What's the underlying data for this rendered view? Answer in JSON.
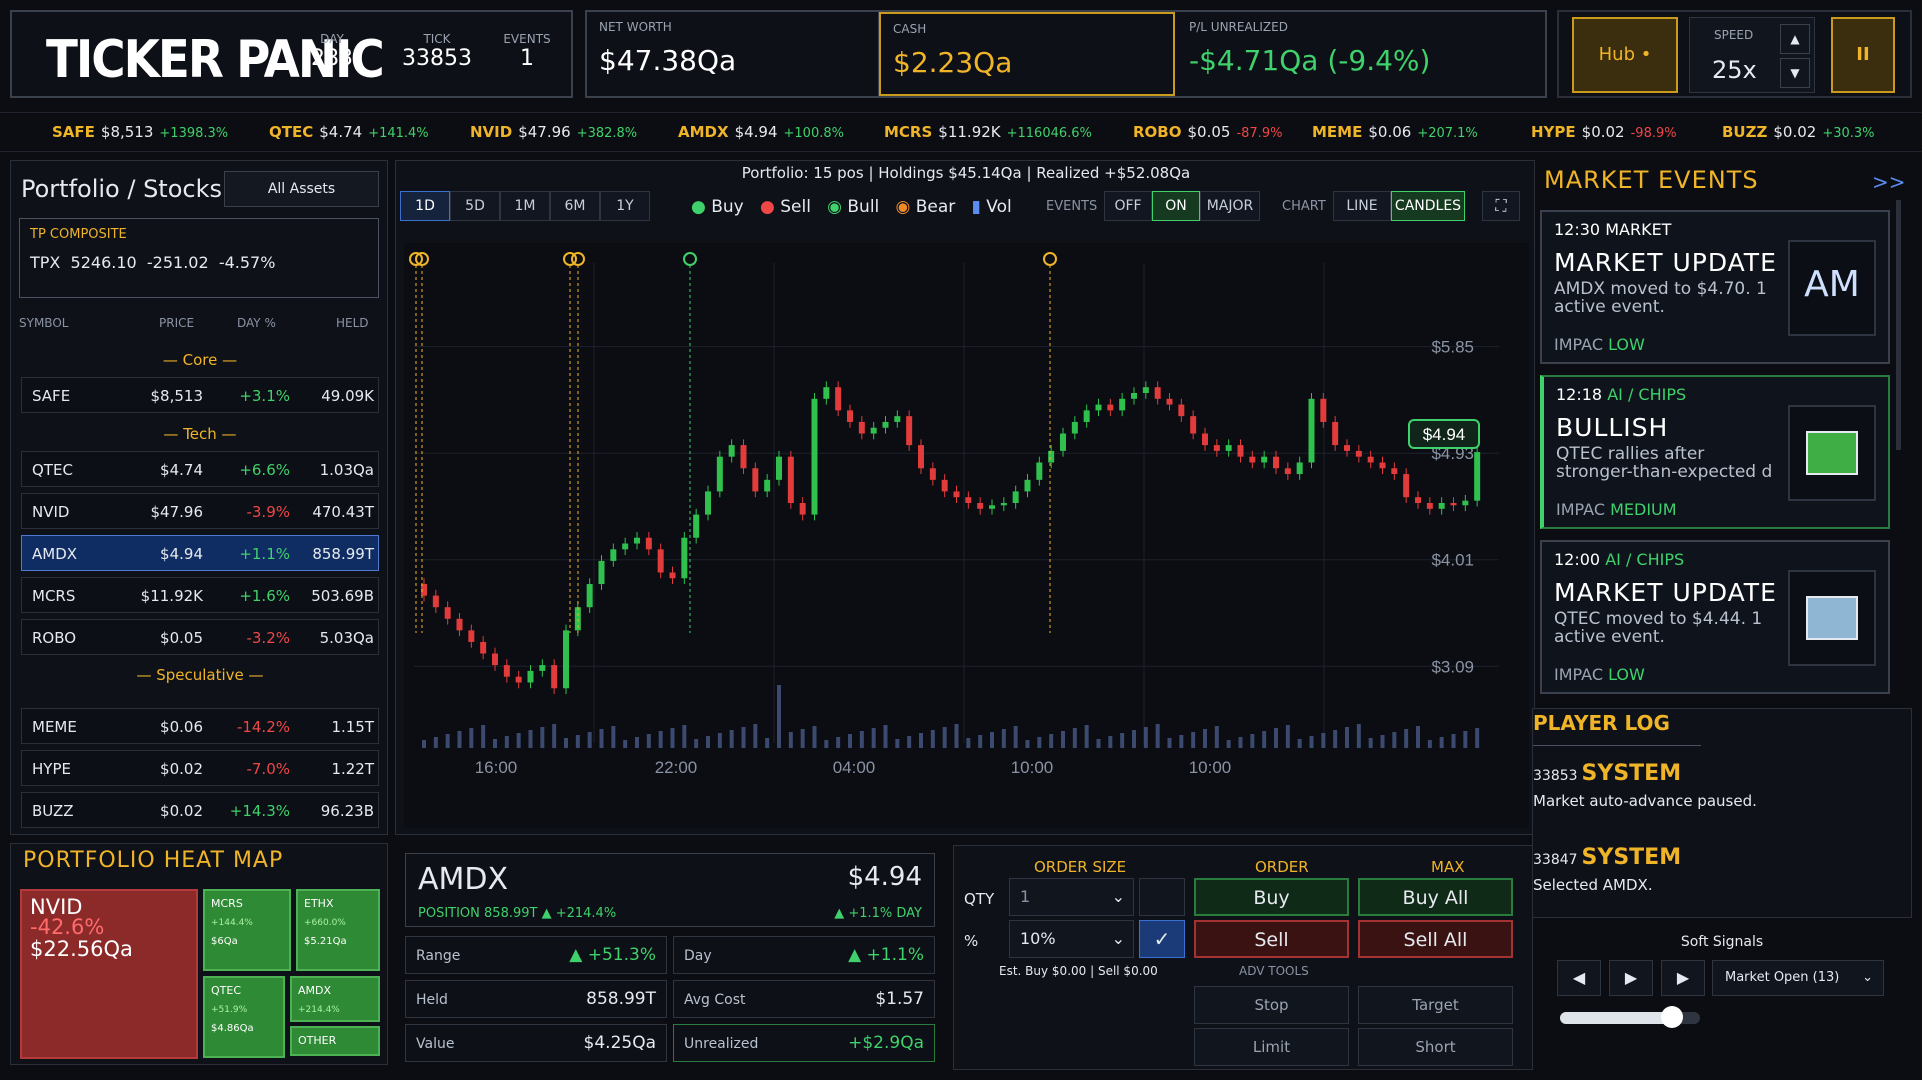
{
  "app": {
    "logo": "TICKER PANIC"
  },
  "header": {
    "day_label": "DAY",
    "day": "283",
    "tick_label": "TICK",
    "tick": "33853",
    "events_label": "EVENTS",
    "events": "1",
    "net_worth_label": "NET WORTH",
    "net_worth": "$47.38Qa",
    "cash_label": "CASH",
    "cash": "$2.23Qa",
    "pl_label": "P/L UNREALIZED",
    "pl": "-$4.71Qa (-9.4%)",
    "hub_label": "Hub •",
    "speed_label": "SPEED",
    "speed": "25x",
    "pause_label": "II"
  },
  "tape": [
    {
      "sym": "SAFE",
      "price": "$8,513",
      "chg": "+1398.3%",
      "up": true
    },
    {
      "sym": "QTEC",
      "price": "$4.74",
      "chg": "+141.4%",
      "up": true
    },
    {
      "sym": "NVID",
      "price": "$47.96",
      "chg": "+382.8%",
      "up": true
    },
    {
      "sym": "AMDX",
      "price": "$4.94",
      "chg": "+100.8%",
      "up": true
    },
    {
      "sym": "MCRS",
      "price": "$11.92K",
      "chg": "+116046.6%",
      "up": true
    },
    {
      "sym": "ROBO",
      "price": "$0.05",
      "chg": "-87.9%",
      "up": false
    },
    {
      "sym": "MEME",
      "price": "$0.06",
      "chg": "+207.1%",
      "up": true
    },
    {
      "sym": "HYPE",
      "price": "$0.02",
      "chg": "-98.9%",
      "up": false
    },
    {
      "sym": "BUZZ",
      "price": "$0.02",
      "chg": "+30.3%",
      "up": true
    }
  ],
  "portfolio": {
    "title": "Portfolio / Stocks",
    "filter": "All Assets",
    "composite_label": "TP COMPOSITE",
    "composite_value": "TPX  5246.10  -251.02  -4.57%",
    "cols": [
      "SYMBOL",
      "PRICE",
      "DAY %",
      "HELD"
    ],
    "groups": {
      "core": "— Core —",
      "tech": "— Tech —",
      "spec": "— Speculative —"
    },
    "rows": [
      {
        "sym": "SAFE",
        "price": "$8,513",
        "day": "+3.1%",
        "held": "49.09K",
        "up": true
      },
      {
        "sym": "QTEC",
        "price": "$4.74",
        "day": "+6.6%",
        "held": "1.03Qa",
        "up": true
      },
      {
        "sym": "NVID",
        "price": "$47.96",
        "day": "-3.9%",
        "held": "470.43T",
        "up": false
      },
      {
        "sym": "AMDX",
        "price": "$4.94",
        "day": "+1.1%",
        "held": "858.99T",
        "up": true
      },
      {
        "sym": "MCRS",
        "price": "$11.92K",
        "day": "+1.6%",
        "held": "503.69B",
        "up": true
      },
      {
        "sym": "ROBO",
        "price": "$0.05",
        "day": "-3.2%",
        "held": "5.03Qa",
        "up": false
      },
      {
        "sym": "MEME",
        "price": "$0.06",
        "day": "-14.2%",
        "held": "1.15T",
        "up": false
      },
      {
        "sym": "HYPE",
        "price": "$0.02",
        "day": "-7.0%",
        "held": "1.22T",
        "up": false
      },
      {
        "sym": "BUZZ",
        "price": "$0.02",
        "day": "+14.3%",
        "held": "96.23B",
        "up": true
      }
    ]
  },
  "chart": {
    "summary": "Portfolio: 15 pos | Holdings $45.14Qa | Realized +$52.08Qa",
    "ranges": [
      "1D",
      "5D",
      "1M",
      "6M",
      "1Y"
    ],
    "legend": [
      "Buy",
      "Sell",
      "Bull",
      "Bear",
      "Vol"
    ],
    "events_label": "EVENTS",
    "events_opts": [
      "OFF",
      "ON",
      "MAJOR"
    ],
    "chart_label": "CHART",
    "chart_opts": [
      "LINE",
      "CANDLES"
    ],
    "y_ticks": [
      "$5.85",
      "$4.93",
      "$4.01",
      "$3.09"
    ],
    "x_ticks": [
      "16:00",
      "22:00",
      "04:00",
      "10:00",
      "10:00"
    ],
    "price_tag": "$4.94"
  },
  "chart_data": {
    "type": "candlestick",
    "title": "",
    "ylim": [
      2.6,
      6.4
    ],
    "y_ticks": [
      5.85,
      4.93,
      4.01,
      3.09
    ],
    "closes": [
      3.7,
      3.6,
      3.5,
      3.4,
      3.3,
      3.2,
      3.1,
      3.0,
      2.95,
      3.05,
      3.1,
      2.9,
      3.4,
      3.6,
      3.8,
      4.0,
      4.1,
      4.15,
      4.2,
      4.1,
      3.9,
      3.85,
      4.2,
      4.4,
      4.6,
      4.9,
      5.0,
      4.8,
      4.6,
      4.7,
      4.9,
      4.5,
      4.4,
      5.4,
      5.5,
      5.3,
      5.2,
      5.1,
      5.15,
      5.2,
      5.25,
      5.0,
      4.8,
      4.7,
      4.6,
      4.55,
      4.5,
      4.45,
      4.48,
      4.5,
      4.6,
      4.7,
      4.85,
      4.95,
      5.1,
      5.2,
      5.3,
      5.35,
      5.3,
      5.4,
      5.45,
      5.5,
      5.4,
      5.35,
      5.25,
      5.1,
      5.0,
      4.95,
      5.0,
      4.9,
      4.85,
      4.9,
      4.8,
      4.75,
      4.85,
      5.4,
      5.2,
      5.0,
      4.95,
      4.9,
      4.85,
      4.8,
      4.75,
      4.55,
      4.5,
      4.45,
      4.5,
      4.48,
      4.52,
      4.94
    ],
    "volume_note": "per-candle volume bars"
  },
  "events": {
    "title": "MARKET EVENTS",
    "collapse": ">>",
    "items": [
      {
        "time": "12:30",
        "cat": "MARKET",
        "title": "MARKET UPDATE",
        "desc": "AMDX moved to $4.70. 1 active event.",
        "imp_label": "IMPAC",
        "imp": "LOW",
        "thumb": "AM"
      },
      {
        "time": "12:18",
        "cat": "AI / CHIPS",
        "title": "BULLISH",
        "desc": "QTEC rallies after stronger-than-expected d",
        "imp_label": "IMPAC",
        "imp": "MEDIUM",
        "thumb": ""
      },
      {
        "time": "12:00",
        "cat": "AI / CHIPS",
        "title": "MARKET UPDATE",
        "desc": "QTEC moved to $4.44. 1 active event.",
        "imp_label": "IMPAC",
        "imp": "LOW",
        "thumb": ""
      }
    ]
  },
  "player_log": {
    "title": "PLAYER LOG",
    "entries": [
      {
        "tick": "33853",
        "who": "SYSTEM",
        "msg": "Market auto-advance paused."
      },
      {
        "tick": "33847",
        "who": "SYSTEM",
        "msg": "Selected AMDX."
      }
    ]
  },
  "heatmap": {
    "title": "PORTFOLIO HEAT MAP",
    "big": {
      "sym": "NVID",
      "chg": "-42.6%",
      "val": "$22.56Qa"
    },
    "tiles": [
      {
        "sym": "MCRS",
        "chg": "+144.4%",
        "val": "$6Qa"
      },
      {
        "sym": "ETHX",
        "chg": "+660.0%",
        "val": "$5.21Qa"
      },
      {
        "sym": "QTEC",
        "chg": "+51.9%",
        "val": "$4.86Qa"
      },
      {
        "sym": "AMDX",
        "chg": "+214.4%",
        "val": ""
      },
      {
        "sym": "OTHER",
        "chg": "",
        "val": ""
      }
    ]
  },
  "detail": {
    "sym": "AMDX",
    "price": "$4.94",
    "position": "POSITION 858.99T ▲ +214.4%",
    "day": "▲ +1.1% DAY",
    "range_label": "Range",
    "range": "▲ +51.3%",
    "day_label": "Day",
    "day_val": "▲ +1.1%",
    "held_label": "Held",
    "held": "858.99T",
    "avg_label": "Avg Cost",
    "avg": "$1.57",
    "value_label": "Value",
    "value": "$4.25Qa",
    "unreal_label": "Unrealized",
    "unreal": "+$2.9Qa"
  },
  "orders": {
    "size_label": "ORDER SIZE",
    "order_label": "ORDER",
    "max_label": "MAX",
    "qty_label": "QTY",
    "qty": "1",
    "pct_label": "%",
    "pct": "10%",
    "est": "Est. Buy $0.00 | Sell $0.00",
    "adv_label": "ADV TOOLS",
    "buy": "Buy",
    "sell": "Sell",
    "buy_all": "Buy All",
    "sell_all": "Sell All",
    "stop": "Stop",
    "target": "Target",
    "limit": "Limit",
    "short": "Short"
  },
  "signals": {
    "title": "Soft Signals",
    "select": "Market Open (13)",
    "slider_level": 0.8
  }
}
